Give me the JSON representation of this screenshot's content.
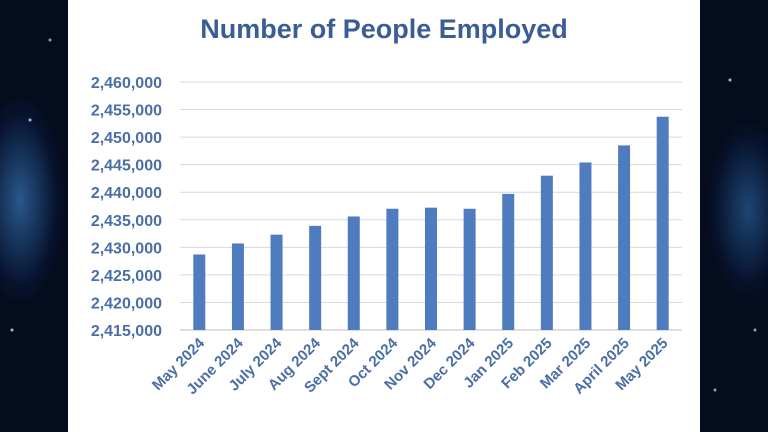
{
  "chart_data": {
    "type": "bar",
    "title": "Number of People Employed",
    "xlabel": "",
    "ylabel": "",
    "categories": [
      "May 2024",
      "June 2024",
      "July 2024",
      "Aug 2024",
      "Sept 2024",
      "Oct 2024",
      "Nov 2024",
      "Dec 2024",
      "Jan 2025",
      "Feb 2025",
      "Mar 2025",
      "April 2025",
      "May 2025"
    ],
    "values": [
      2428700,
      2430700,
      2432300,
      2433900,
      2435600,
      2437000,
      2437200,
      2437000,
      2439700,
      2443000,
      2445400,
      2448500,
      2453700
    ],
    "ylim": [
      2415000,
      2460000
    ],
    "yticks": [
      2415000,
      2420000,
      2425000,
      2430000,
      2435000,
      2440000,
      2445000,
      2450000,
      2455000,
      2460000
    ],
    "ytick_labels": [
      "2,415,000",
      "2,420,000",
      "2,425,000",
      "2,430,000",
      "2,435,000",
      "2,440,000",
      "2,445,000",
      "2,450,000",
      "2,455,000",
      "2,460,000"
    ],
    "grid": true,
    "legend": "none",
    "colors": {
      "bar": "#4f7cbf",
      "title": "#3a5d96",
      "tick": "#4a6fa5",
      "grid": "#d9d9d9"
    }
  }
}
